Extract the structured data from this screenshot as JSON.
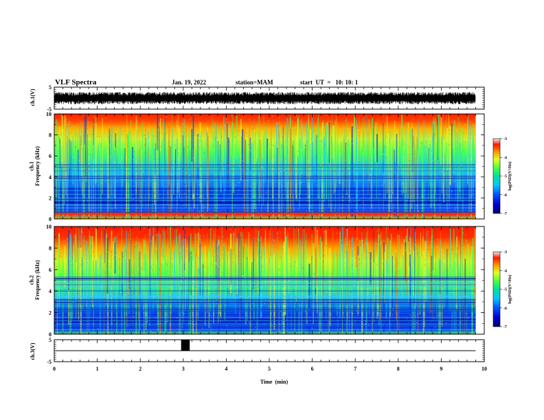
{
  "header": {
    "title": "VLF Spectra",
    "date": "Jan. 19, 2022",
    "station": "station=MAM",
    "start": "start  UT  =   10: 10: 1"
  },
  "chart_data": [
    {
      "type": "line",
      "panel": "ch1-waveform",
      "ylabel": "ch.1(V)",
      "xlim": [
        0,
        10
      ],
      "ylim": [
        -5,
        5
      ],
      "yticks": [
        "5",
        "-5"
      ],
      "data_extent_min": 9.8,
      "description_level": "dense noise between about -2.5 and +2.5 V"
    },
    {
      "type": "heatmap",
      "panel": "ch1-spectrogram",
      "ylabel": "ch.1\nFrequency  (kHz)",
      "xlim": [
        0,
        10
      ],
      "ylim": [
        0,
        10
      ],
      "yticks": [
        "0",
        "2",
        "4",
        "6",
        "8",
        "10"
      ],
      "colorbar": {
        "label": "log(PSD)(V²/Hz)",
        "range": [
          -7,
          -3
        ],
        "ticks": [
          "-3",
          "-4",
          "-5",
          "-6",
          "-7"
        ]
      }
    },
    {
      "type": "heatmap",
      "panel": "ch2-spectrogram",
      "ylabel": "ch.2\nFrequency  (kHz)",
      "xlim": [
        0,
        10
      ],
      "ylim": [
        0,
        10
      ],
      "yticks": [
        "0",
        "2",
        "4",
        "6",
        "8",
        "10"
      ],
      "colorbar": {
        "label": "log(PSD)(V²/Hz)",
        "range": [
          -7,
          -3
        ],
        "ticks": [
          "-3",
          "-4",
          "-5",
          "-6",
          "-7"
        ]
      }
    },
    {
      "type": "line",
      "panel": "ch3-waveform",
      "ylabel": "ch.3(V)",
      "xlim": [
        0,
        10
      ],
      "ylim": [
        -5,
        5
      ],
      "yticks": [
        "5",
        "-5"
      ],
      "baseline_v": 0,
      "pulse": {
        "start_min": 2.95,
        "end_min": 3.15,
        "high_v": 5
      },
      "xlabel": "Time  (min)",
      "xticks": [
        "0",
        "1",
        "2",
        "3",
        "4",
        "5",
        "6",
        "7",
        "8",
        "9",
        "10"
      ]
    }
  ]
}
